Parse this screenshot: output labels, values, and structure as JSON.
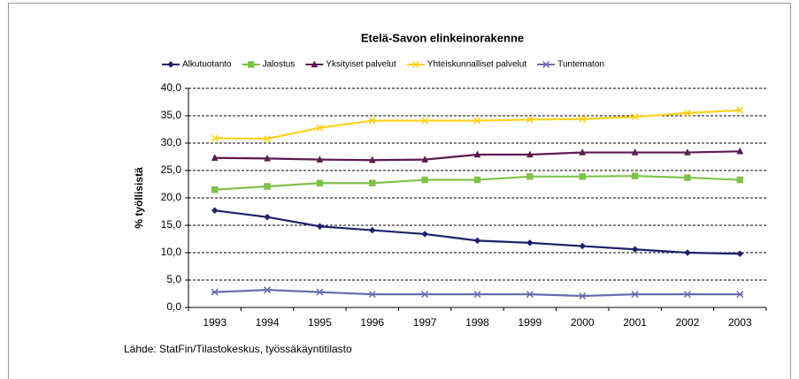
{
  "chart_data": {
    "type": "line",
    "title": "Etelä-Savon elinkeinorakenne",
    "ylabel": "% työllisistä",
    "source": "Lähde: StatFin/Tilastokeskus, työssäkäyntitilasto",
    "categories": [
      "1993",
      "1994",
      "1995",
      "1996",
      "1997",
      "1998",
      "1999",
      "2000",
      "2001",
      "2002",
      "2003"
    ],
    "series": [
      {
        "name": "Alkutuotanto",
        "color": "#1f1f6b",
        "marker": "diamond",
        "values": [
          17.7,
          16.5,
          14.8,
          14.1,
          13.4,
          12.2,
          11.8,
          11.2,
          10.6,
          10.0,
          9.8
        ]
      },
      {
        "name": "Jalostus",
        "color": "#7fc24a",
        "marker": "square",
        "values": [
          21.5,
          22.1,
          22.7,
          22.7,
          23.3,
          23.3,
          23.9,
          23.9,
          24.0,
          23.7,
          23.3
        ]
      },
      {
        "name": "Yksityiset palvelut",
        "color": "#5c1a4e",
        "marker": "triangle",
        "values": [
          27.3,
          27.2,
          27.0,
          26.9,
          27.0,
          27.9,
          27.9,
          28.3,
          28.3,
          28.3,
          28.5
        ]
      },
      {
        "name": "Yhteiskunnalliset palvelut",
        "color": "#ffd21a",
        "marker": "x",
        "values": [
          30.9,
          30.8,
          32.8,
          34.1,
          34.1,
          34.1,
          34.3,
          34.4,
          34.8,
          35.5,
          36.0
        ]
      },
      {
        "name": "Tuntematon",
        "color": "#6b6bb0",
        "marker": "star",
        "values": [
          2.8,
          3.2,
          2.8,
          2.4,
          2.4,
          2.4,
          2.4,
          2.1,
          2.4,
          2.4,
          2.4
        ]
      }
    ],
    "ylim": [
      0,
      40
    ],
    "yticks": [
      {
        "value": 0,
        "label": "0,0"
      },
      {
        "value": 5,
        "label": "5,0"
      },
      {
        "value": 10,
        "label": "10,0"
      },
      {
        "value": 15,
        "label": "15,0"
      },
      {
        "value": 20,
        "label": "20,0"
      },
      {
        "value": 25,
        "label": "25,0"
      },
      {
        "value": 30,
        "label": "30,0"
      },
      {
        "value": 35,
        "label": "35,0"
      },
      {
        "value": 40,
        "label": "40,0"
      }
    ],
    "grid": true,
    "legend": "top"
  }
}
